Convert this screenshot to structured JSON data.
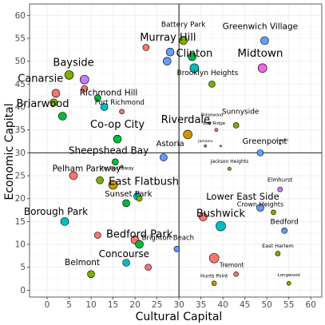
{
  "chart_data": {
    "type": "scatter",
    "xlabel": "Cultural Capital",
    "ylabel": "Economic Capital",
    "xlim": [
      -4,
      62.5
    ],
    "ylim": [
      -1.5,
      62.5
    ],
    "x_ticks": [
      0,
      5,
      10,
      15,
      20,
      25,
      30,
      35,
      40,
      45,
      50,
      55,
      60
    ],
    "y_ticks": [
      0,
      5,
      10,
      15,
      20,
      25,
      30,
      35,
      40,
      45,
      50,
      55,
      60
    ],
    "reference_lines": {
      "x": 30,
      "y": 30
    },
    "grid": true,
    "legend": "none",
    "points": [
      {
        "x": 31,
        "y": 54.5,
        "r": 5,
        "color": "#7cae00",
        "label": "",
        "lx": 0,
        "ly": 0,
        "ls": 0
      },
      {
        "x": 28,
        "y": 52,
        "r": 5,
        "color": "#619cff",
        "label": "Murray Hill",
        "lx": 27.5,
        "ly": 54.5,
        "ls": 13
      },
      {
        "x": 22.5,
        "y": 53,
        "r": 4,
        "color": "#f8766d",
        "label": "",
        "lx": 0,
        "ly": 0,
        "ls": 0
      },
      {
        "x": 30.5,
        "y": 55,
        "r": 0,
        "color": "#000000",
        "label": "Battery Park",
        "lx": 31,
        "ly": 57.5,
        "ls": 9
      },
      {
        "x": 49.5,
        "y": 54.5,
        "r": 5,
        "color": "#619cff",
        "label": "Greenwich Village",
        "lx": 48.5,
        "ly": 57,
        "ls": 10.5
      },
      {
        "x": 33,
        "y": 51,
        "r": 5,
        "color": "#00ba38",
        "label": "Clinton",
        "lx": 33.5,
        "ly": 51,
        "ls": 13
      },
      {
        "x": 27.3,
        "y": 50,
        "r": 5,
        "color": "#619cff",
        "label": "",
        "lx": 0,
        "ly": 0,
        "ls": 0
      },
      {
        "x": 33.5,
        "y": 48.5,
        "r": 5.5,
        "color": "#00bfc4",
        "label": "",
        "lx": 0,
        "ly": 0,
        "ls": 0
      },
      {
        "x": 49,
        "y": 48.5,
        "r": 5.5,
        "color": "#f564e3",
        "label": "Midtown",
        "lx": 48.5,
        "ly": 51,
        "ls": 13.5
      },
      {
        "x": 37.5,
        "y": 45,
        "r": 4,
        "color": "#7cae00",
        "label": "Brooklyn Heights",
        "lx": 36.5,
        "ly": 47,
        "ls": 9
      },
      {
        "x": 5,
        "y": 47,
        "r": 5.5,
        "color": "#7cae00",
        "label": "Bayside",
        "lx": 6,
        "ly": 49,
        "ls": 13
      },
      {
        "x": 2,
        "y": 43,
        "r": 5,
        "color": "#f8766d",
        "label": "Canarsie",
        "lx": -1.5,
        "ly": 45.5,
        "ls": 13
      },
      {
        "x": 8.5,
        "y": 44,
        "r": 4,
        "color": "#f8766d",
        "label": "",
        "lx": 0,
        "ly": 0,
        "ls": 0
      },
      {
        "x": 8.5,
        "y": 46,
        "r": 5.5,
        "color": "#c77cff",
        "label": "",
        "lx": 0,
        "ly": 0,
        "ls": 0
      },
      {
        "x": 11.5,
        "y": 42,
        "r": 4,
        "color": "#00ba38",
        "label": "Richmond Hill",
        "lx": 14,
        "ly": 42.5,
        "ls": 10.5
      },
      {
        "x": 13,
        "y": 40,
        "r": 4.5,
        "color": "#00bfc4",
        "label": "Port Richmond",
        "lx": 16.5,
        "ly": 40.5,
        "ls": 8.5
      },
      {
        "x": 17,
        "y": 39,
        "r": 3,
        "color": "#f8766d",
        "label": "",
        "lx": 0,
        "ly": 0,
        "ls": 0
      },
      {
        "x": 1.5,
        "y": 41,
        "r": 4.5,
        "color": "#7cae00",
        "label": "Briarwood",
        "lx": -1,
        "ly": 40,
        "ls": 13
      },
      {
        "x": 3.5,
        "y": 38,
        "r": 5,
        "color": "#00ba38",
        "label": "",
        "lx": 0,
        "ly": 0,
        "ls": 0
      },
      {
        "x": 16,
        "y": 33,
        "r": 5,
        "color": "#00ba38",
        "label": "Co-op City",
        "lx": 16,
        "ly": 35.5,
        "ls": 13
      },
      {
        "x": 37,
        "y": 36.5,
        "r": 1.5,
        "color": "#7cae00",
        "label": "Ridgewood",
        "lx": 37.5,
        "ly": 38,
        "ls": 5
      },
      {
        "x": 32,
        "y": 34,
        "r": 5.5,
        "color": "#cd9600",
        "label": "Riverdale",
        "lx": 31.5,
        "ly": 36.5,
        "ls": 13
      },
      {
        "x": 43,
        "y": 36,
        "r": 3.5,
        "color": "#7cae00",
        "label": "Sunnyside",
        "lx": 44,
        "ly": 38.5,
        "ls": 9
      },
      {
        "x": 38.5,
        "y": 35,
        "r": 2,
        "color": "#f8766d",
        "label": "Bay Ridge",
        "lx": 38,
        "ly": 36.2,
        "ls": 5.5
      },
      {
        "x": 39.5,
        "y": 31.5,
        "r": 1,
        "color": "#619cff",
        "label": "",
        "lx": 0,
        "ly": 0,
        "ls": 0
      },
      {
        "x": 36,
        "y": 31.5,
        "r": 1.5,
        "color": "#f564e3",
        "label": "Jamaica",
        "lx": 36,
        "ly": 32.3,
        "ls": 4.5
      },
      {
        "x": 53,
        "y": 32,
        "r": 1,
        "color": "#00bfc4",
        "label": "Inwood",
        "lx": 53.5,
        "ly": 32.5,
        "ls": 4
      },
      {
        "x": 48.5,
        "y": 30,
        "r": 4,
        "color": "#619cff",
        "label": "Greenpoint",
        "lx": 49.5,
        "ly": 32,
        "ls": 10
      },
      {
        "x": 26.5,
        "y": 29,
        "r": 4.5,
        "color": "#619cff",
        "label": "Astoria",
        "lx": 28,
        "ly": 31.5,
        "ls": 10
      },
      {
        "x": 15.5,
        "y": 28,
        "r": 4,
        "color": "#00ba38",
        "label": "Sheepshead Bay",
        "lx": 14,
        "ly": 29.8,
        "ls": 12
      },
      {
        "x": 17,
        "y": 27,
        "r": 1.5,
        "color": "#7cae00",
        "label": "Far Rockaway",
        "lx": 16,
        "ly": 26.3,
        "ls": 6
      },
      {
        "x": 41.5,
        "y": 26.5,
        "r": 2,
        "color": "#7cae00",
        "label": "Jackson Heights",
        "lx": 41.5,
        "ly": 27.8,
        "ls": 6
      },
      {
        "x": 6,
        "y": 25,
        "r": 5,
        "color": "#f8766d",
        "label": "Pelham Parkway",
        "lx": 9,
        "ly": 26,
        "ls": 10.5
      },
      {
        "x": 12,
        "y": 24,
        "r": 4.5,
        "color": "#7cae00",
        "label": "",
        "lx": 0,
        "ly": 0,
        "ls": 0
      },
      {
        "x": 15,
        "y": 23,
        "r": 5.5,
        "color": "#cd9600",
        "label": "East Flatbush",
        "lx": 22,
        "ly": 23,
        "ls": 13
      },
      {
        "x": 20.5,
        "y": 20.5,
        "r": 4.5,
        "color": "#00bfc4",
        "label": "",
        "lx": 0,
        "ly": 0,
        "ls": 0
      },
      {
        "x": 21,
        "y": 20,
        "r": 3.5,
        "color": "#7cae00",
        "label": "Sunset Park",
        "lx": 18.5,
        "ly": 20.5,
        "ls": 10
      },
      {
        "x": 18,
        "y": 19,
        "r": 4.5,
        "color": "#00ba38",
        "label": "",
        "lx": 0,
        "ly": 0,
        "ls": 0
      },
      {
        "x": 53,
        "y": 22,
        "r": 3,
        "color": "#c77cff",
        "label": "Elmhurst",
        "lx": 53,
        "ly": 23.7,
        "ls": 7
      },
      {
        "x": 44.5,
        "y": 19,
        "r": 0,
        "color": "#000000",
        "label": "Lower East Side",
        "lx": 44.5,
        "ly": 19.8,
        "ls": 11.5
      },
      {
        "x": 48.5,
        "y": 18,
        "r": 4.5,
        "color": "#619cff",
        "label": "Crown Heights",
        "lx": 48.5,
        "ly": 18.3,
        "ls": 8
      },
      {
        "x": 51.5,
        "y": 17,
        "r": 3,
        "color": "#7cae00",
        "label": "",
        "lx": 0,
        "ly": 0,
        "ls": 0
      },
      {
        "x": 35.5,
        "y": 16,
        "r": 5,
        "color": "#f8766d",
        "label": "Bushwick",
        "lx": 39.5,
        "ly": 16,
        "ls": 13
      },
      {
        "x": 39.5,
        "y": 14,
        "r": 6,
        "color": "#00bfc4",
        "label": "",
        "lx": 0,
        "ly": 0,
        "ls": 0
      },
      {
        "x": 54,
        "y": 13,
        "r": 3.5,
        "color": "#619cff",
        "label": "Bedford",
        "lx": 54,
        "ly": 14.5,
        "ls": 9
      },
      {
        "x": 4,
        "y": 15,
        "r": 5,
        "color": "#00bfc4",
        "label": "Borough Park",
        "lx": 2,
        "ly": 16.5,
        "ls": 12
      },
      {
        "x": 11.5,
        "y": 12,
        "r": 4,
        "color": "#f8766d",
        "label": "",
        "lx": 0,
        "ly": 0,
        "ls": 0
      },
      {
        "x": 20,
        "y": 11,
        "r": 5,
        "color": "#f8766d",
        "label": "Bedford Park",
        "lx": 21,
        "ly": 11.5,
        "ls": 13
      },
      {
        "x": 21,
        "y": 10,
        "r": 5,
        "color": "#00ba38",
        "label": "",
        "lx": 0,
        "ly": 0,
        "ls": 0
      },
      {
        "x": 27.5,
        "y": 11,
        "r": 0,
        "color": "#000000",
        "label": "Brighton Beach",
        "lx": 27.5,
        "ly": 11,
        "ls": 8.5
      },
      {
        "x": 29.5,
        "y": 9,
        "r": 3.5,
        "color": "#619cff",
        "label": "",
        "lx": 0,
        "ly": 0,
        "ls": 0
      },
      {
        "x": 19,
        "y": 10,
        "r": 0,
        "color": "#000000",
        "label": "Concourse",
        "lx": 17.5,
        "ly": 7.2,
        "ls": 12
      },
      {
        "x": 52.5,
        "y": 8,
        "r": 3,
        "color": "#7cae00",
        "label": "East Harlem",
        "lx": 52.5,
        "ly": 9.3,
        "ls": 6.5
      },
      {
        "x": 38,
        "y": 7,
        "r": 6,
        "color": "#f8766d",
        "label": "",
        "lx": 0,
        "ly": 0,
        "ls": 0
      },
      {
        "x": 18,
        "y": 6,
        "r": 4.5,
        "color": "#00bfc4",
        "label": "",
        "lx": 0,
        "ly": 0,
        "ls": 0
      },
      {
        "x": 23,
        "y": 5,
        "r": 4,
        "color": "#f8766d",
        "label": "",
        "lx": 0,
        "ly": 0,
        "ls": 0
      },
      {
        "x": 10,
        "y": 3.5,
        "r": 4.5,
        "color": "#7cae00",
        "label": "Belmont",
        "lx": 8,
        "ly": 5.5,
        "ls": 10.5
      },
      {
        "x": 43,
        "y": 3.5,
        "r": 3,
        "color": "#f8766d",
        "label": "Tremont",
        "lx": 42,
        "ly": 5,
        "ls": 7.5
      },
      {
        "x": 38,
        "y": 1.5,
        "r": 3,
        "color": "#cd9600",
        "label": "Hunts Point",
        "lx": 38,
        "ly": 2.8,
        "ls": 6
      },
      {
        "x": 55,
        "y": 1.5,
        "r": 2.5,
        "color": "#7cae00",
        "label": "Longwood",
        "lx": 55,
        "ly": 3,
        "ls": 5.5
      }
    ]
  }
}
